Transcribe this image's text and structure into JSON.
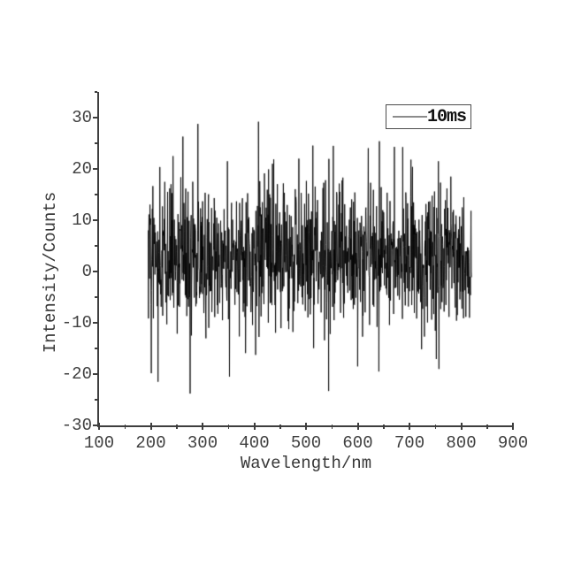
{
  "figure": {
    "background": "#ffffff",
    "axis_color": "#3e3e3e",
    "text_color": "#3f3f3f",
    "series_color": "#000000",
    "legend_line_color": "#8c8c8c"
  },
  "chart_data": {
    "type": "line",
    "title": "",
    "xlabel": "Wavelength/nm",
    "ylabel": "Intensity/Counts",
    "xlim": [
      100,
      900
    ],
    "ylim": [
      -30,
      35
    ],
    "grid": false,
    "x_major_ticks": [
      100,
      200,
      300,
      400,
      500,
      600,
      700,
      800,
      900
    ],
    "x_tick_labels": [
      "100",
      "200",
      "300",
      "400",
      "500",
      "600",
      "700",
      "800",
      "900"
    ],
    "x_minor_ticks": [
      150,
      250,
      350,
      450,
      550,
      650,
      750,
      850
    ],
    "y_major_ticks": [
      -30,
      -20,
      -10,
      0,
      10,
      20,
      30
    ],
    "y_tick_labels": [
      "-30",
      "-20",
      "-10",
      "0",
      "10",
      "20",
      "30"
    ],
    "y_minor_ticks": [
      -25,
      -15,
      -5,
      5,
      15,
      25,
      35
    ],
    "legend": {
      "position": "top-right",
      "entries": [
        {
          "label": "10ms",
          "swatch_color": "#8c8c8c"
        }
      ]
    },
    "series": [
      {
        "name": "10ms",
        "color": "#000000",
        "x_start": 195,
        "x_end": 820,
        "n_points": 1250,
        "noise_mean": 3.0,
        "noise_std": 6.6,
        "heavy_tail_prob": 0.08,
        "heavy_tail_std": 10.0,
        "y_min": -24.0,
        "y_max": 29.2,
        "seed": 42,
        "notable_peaks": [
          [
            408,
            29.2
          ],
          [
            262,
            26.3
          ],
          [
            553,
            24.5
          ],
          [
            671,
            24.3
          ],
          [
            243,
            22.5
          ],
          [
            486,
            22.0
          ],
          [
            703,
            21.8
          ],
          [
            348,
            21.5
          ],
          [
            435,
            21.0
          ],
          [
            780,
            18.5
          ],
          [
            276,
            -23.8
          ],
          [
            544,
            -23.3
          ],
          [
            214,
            -21.5
          ],
          [
            352,
            -20.5
          ],
          [
            641,
            -19.5
          ],
          [
            757,
            -19.0
          ],
          [
            600,
            -18.5
          ]
        ]
      }
    ]
  }
}
